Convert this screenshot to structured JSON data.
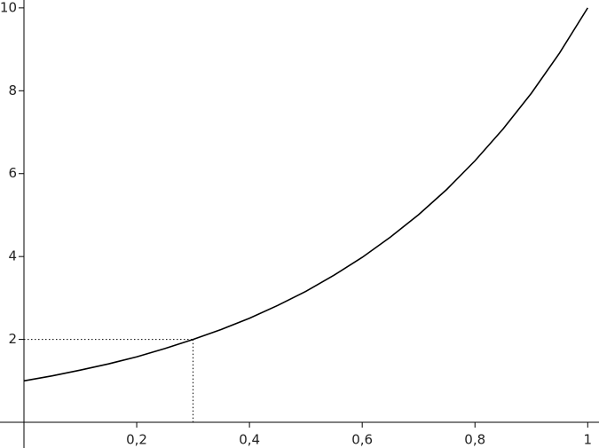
{
  "chart_data": {
    "type": "line",
    "x": [
      0,
      0.05,
      0.1,
      0.15,
      0.2,
      0.25,
      0.3,
      0.35,
      0.4,
      0.45,
      0.5,
      0.55,
      0.6,
      0.65,
      0.7,
      0.75,
      0.8,
      0.85,
      0.9,
      0.95,
      1
    ],
    "series": [
      {
        "color": "#000000",
        "values": [
          1,
          1.12,
          1.26,
          1.41,
          1.58,
          1.78,
          2.0,
          2.24,
          2.51,
          2.82,
          3.16,
          3.55,
          3.98,
          4.47,
          5.01,
          5.62,
          6.31,
          7.08,
          7.94,
          8.91,
          10
        ]
      }
    ],
    "reference_point": {
      "x": 0.3,
      "y": 2
    },
    "xlim": [
      -0.0425,
      1.02
    ],
    "ylim": [
      -0.62,
      10.19
    ],
    "xticks": [
      {
        "value": 0.2,
        "label": "0,2"
      },
      {
        "value": 0.4,
        "label": "0,4"
      },
      {
        "value": 0.6,
        "label": "0,6"
      },
      {
        "value": 0.8,
        "label": "0,8"
      },
      1
    ],
    "yticks": [
      2,
      4,
      6,
      8,
      10
    ]
  }
}
